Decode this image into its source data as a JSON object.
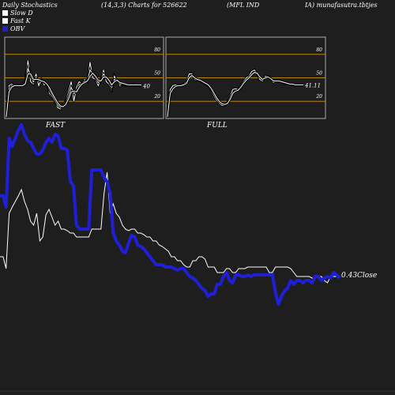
{
  "header": {
    "title": "Daily Stochastics",
    "params": "(14,3,3) Charts for 526622",
    "symbol": "(MFL IND",
    "site": "IA) munafasutra.tbtjes"
  },
  "legend": [
    {
      "label": "Slow  D",
      "color": "#ffffff"
    },
    {
      "label": "Fast K",
      "color": "#ffffff"
    },
    {
      "label": "OBV",
      "color": "#1f1fd6"
    }
  ],
  "colors": {
    "background": "#1e1e1e",
    "obv": "#1f1fd6",
    "price": "#ffffff",
    "band": "#b8860b",
    "panel_border": "#aaaaaa"
  },
  "chart_data": [
    {
      "type": "line",
      "title": "FAST",
      "ylim": [
        0,
        100
      ],
      "yticks": [
        "80",
        "50",
        "20"
      ],
      "levels": [
        80,
        50,
        20
      ],
      "value_label": "40",
      "x": [
        0,
        1,
        2,
        3,
        4,
        5,
        6,
        7,
        8,
        9,
        10,
        11,
        12,
        13,
        14,
        15,
        16,
        17,
        18,
        19,
        20,
        21,
        22,
        23,
        24,
        25,
        26,
        27,
        28,
        29,
        30,
        31,
        32,
        33,
        34,
        35,
        36,
        37,
        38,
        39,
        40,
        41,
        42,
        43,
        44,
        45,
        46,
        47,
        48,
        49,
        50
      ],
      "series": [
        {
          "values": [
            0,
            40,
            42,
            41,
            40,
            41,
            40,
            45,
            72,
            45,
            42,
            55,
            40,
            48,
            41,
            42,
            30,
            25,
            20,
            12,
            10,
            15,
            20,
            32,
            45,
            20,
            38,
            45,
            42,
            48,
            45,
            70,
            50,
            48,
            40,
            48,
            60,
            45,
            42,
            35,
            52,
            45,
            40,
            42,
            40,
            41,
            40,
            42,
            40,
            41,
            40
          ]
        },
        {
          "values": [
            0,
            36,
            40,
            41,
            40,
            40,
            41,
            43,
            62,
            52,
            45,
            50,
            46,
            47,
            44,
            41,
            34,
            27,
            21,
            15,
            12,
            13,
            18,
            27,
            38,
            30,
            33,
            41,
            43,
            46,
            46,
            60,
            55,
            50,
            44,
            46,
            55,
            50,
            45,
            38,
            48,
            47,
            42,
            42,
            41,
            41,
            40,
            41,
            40,
            41,
            40
          ]
        },
        {
          "values": [
            0,
            32,
            38,
            40,
            40,
            40,
            40,
            42,
            55,
            55,
            48,
            48,
            48,
            46,
            45,
            42,
            37,
            30,
            24,
            18,
            14,
            13,
            16,
            23,
            32,
            33,
            32,
            38,
            42,
            44,
            46,
            52,
            56,
            52,
            47,
            46,
            51,
            51,
            47,
            41,
            45,
            47,
            44,
            43,
            42,
            41,
            41,
            41,
            41,
            41,
            41
          ]
        }
      ]
    },
    {
      "type": "line",
      "title": "FULL",
      "ylim": [
        0,
        100
      ],
      "yticks": [
        "80",
        "50",
        "20"
      ],
      "levels": [
        80,
        50,
        20
      ],
      "value_label": "41.11",
      "x": [
        0,
        1,
        2,
        3,
        4,
        5,
        6,
        7,
        8,
        9,
        10,
        11,
        12,
        13,
        14,
        15,
        16,
        17,
        18,
        19,
        20,
        21,
        22,
        23,
        24,
        25,
        26,
        27,
        28,
        29,
        30,
        31,
        32,
        33,
        34,
        35,
        36,
        37,
        38,
        39,
        40,
        41,
        42,
        43,
        44,
        45,
        46,
        47,
        48,
        49,
        50
      ],
      "series": [
        {
          "values": [
            0,
            35,
            40,
            41,
            40,
            41,
            42,
            45,
            55,
            55,
            48,
            47,
            46,
            44,
            42,
            40,
            35,
            28,
            22,
            18,
            15,
            15,
            18,
            25,
            35,
            36,
            35,
            40,
            45,
            50,
            52,
            58,
            60,
            55,
            48,
            46,
            52,
            52,
            48,
            44,
            46,
            46,
            44,
            43,
            42,
            42,
            41,
            41,
            41,
            41,
            41
          ]
        },
        {
          "values": [
            0,
            30,
            36,
            39,
            40,
            40,
            41,
            43,
            50,
            53,
            50,
            48,
            47,
            45,
            43,
            41,
            37,
            31,
            25,
            20,
            17,
            16,
            17,
            22,
            30,
            33,
            34,
            38,
            43,
            47,
            50,
            54,
            57,
            56,
            51,
            48,
            50,
            51,
            49,
            46,
            46,
            46,
            45,
            44,
            43,
            42,
            42,
            41,
            41,
            41,
            41
          ]
        }
      ]
    },
    {
      "type": "line",
      "title": "",
      "close_label": "0.43Close",
      "series": [
        {
          "name": "OBV",
          "values": [
            248,
            248,
            262,
            175,
            185,
            175,
            165,
            158,
            170,
            178,
            180,
            188,
            195,
            195,
            190,
            180,
            175,
            180,
            170,
            172,
            188,
            188,
            190,
            230,
            235,
            285,
            290,
            290,
            290,
            290,
            215,
            215,
            215,
            215,
            225,
            230,
            245,
            295,
            305,
            310,
            318,
            320,
            308,
            298,
            300,
            310,
            312,
            315,
            320,
            325,
            330,
            335,
            335,
            335,
            338,
            338,
            338,
            340,
            342,
            340,
            340,
            345,
            350,
            352,
            355,
            360,
            365,
            368,
            375,
            372,
            372,
            360,
            360,
            350,
            345,
            355,
            358,
            348,
            348,
            350,
            350,
            348,
            350,
            348,
            348,
            348,
            348,
            348,
            348,
            348,
            370,
            385,
            375,
            368,
            365,
            355,
            360,
            355,
            355,
            358,
            355,
            355,
            358,
            350,
            350,
            355,
            352,
            350,
            352,
            345,
            348,
            352
          ]
        },
        {
          "name": "Close",
          "values": [
            325,
            325,
            340,
            270,
            262,
            255,
            248,
            240,
            255,
            265,
            280,
            285,
            270,
            305,
            300,
            272,
            265,
            275,
            285,
            280,
            290,
            290,
            292,
            295,
            295,
            300,
            300,
            300,
            300,
            300,
            290,
            290,
            290,
            290,
            245,
            218,
            270,
            258,
            270,
            275,
            285,
            290,
            292,
            290,
            290,
            295,
            295,
            297,
            300,
            300,
            305,
            305,
            310,
            312,
            315,
            318,
            325,
            325,
            330,
            330,
            335,
            338,
            338,
            330,
            330,
            325,
            325,
            328,
            338,
            338,
            338,
            345,
            345,
            345,
            340,
            340,
            345,
            345,
            340,
            340,
            340,
            338,
            338,
            338,
            338,
            338,
            338,
            338,
            345,
            345,
            338,
            338,
            338,
            338,
            338,
            340,
            345,
            350,
            350,
            350,
            350,
            350,
            352,
            352,
            350,
            350,
            355,
            358,
            350,
            350,
            350,
            350
          ]
        }
      ]
    }
  ],
  "panels": {
    "fast_label": "FAST",
    "full_label": "FULL"
  }
}
